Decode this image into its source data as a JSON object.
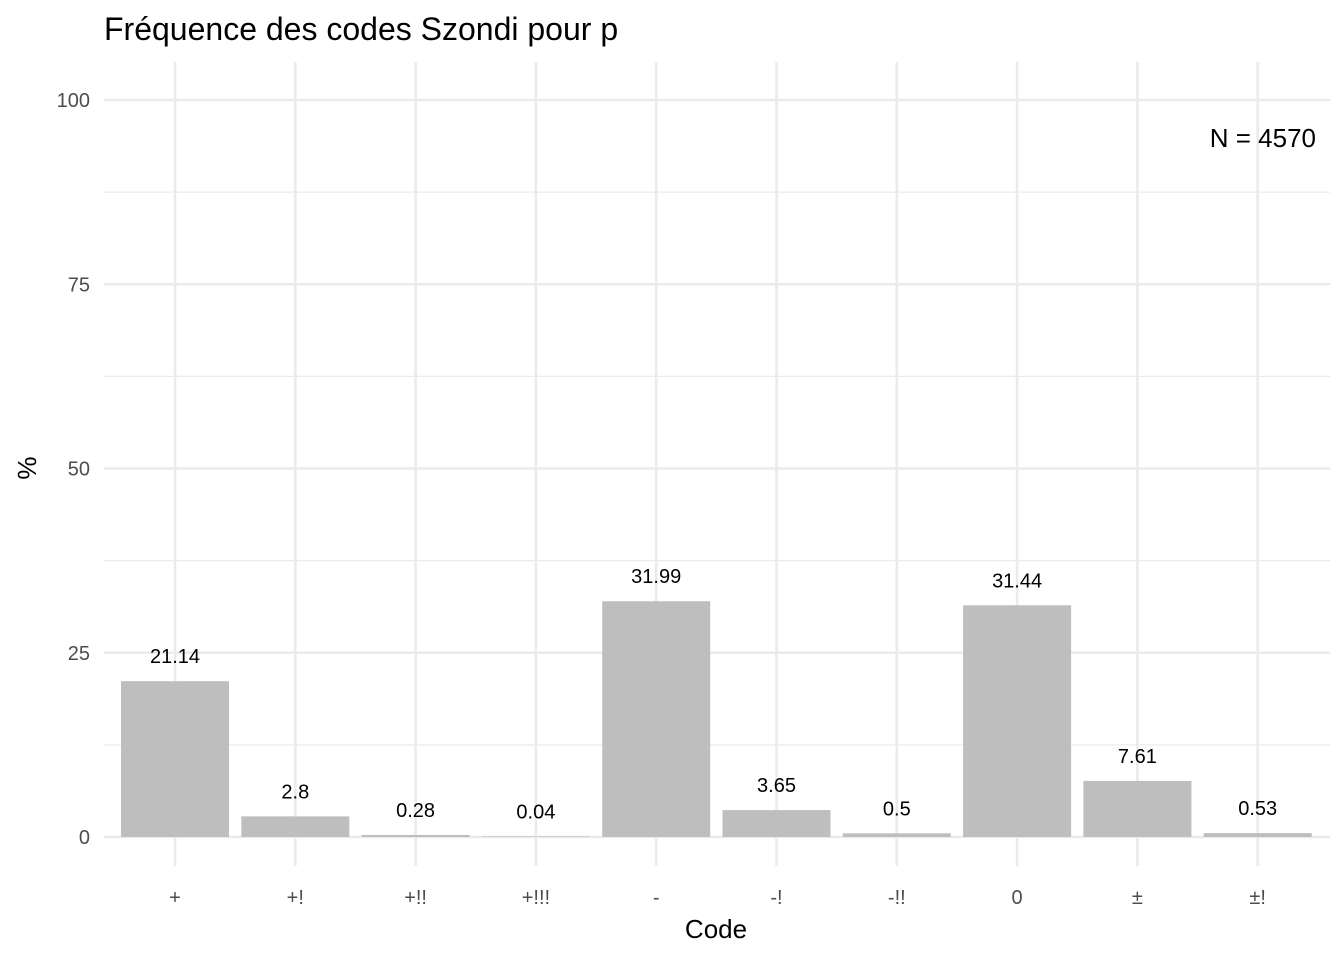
{
  "chart_data": {
    "type": "bar",
    "title": "Fréquence des codes Szondi pour p",
    "xlabel": "Code",
    "ylabel": "%",
    "categories": [
      "+",
      "+!",
      "+!!",
      "+!!!",
      "-",
      "-!",
      "-!!",
      "0",
      "±",
      "±!"
    ],
    "values": [
      21.14,
      2.8,
      0.28,
      0.04,
      31.99,
      3.65,
      0.5,
      31.44,
      7.61,
      0.53
    ],
    "data_labels": [
      "21.14",
      "2.8",
      "0.28",
      "0.04",
      "31.99",
      "3.65",
      "0.5",
      "31.44",
      "7.61",
      "0.53"
    ],
    "ylim": [
      0,
      100
    ],
    "yticks": [
      0,
      25,
      50,
      75,
      100
    ],
    "y_minor_ticks": [
      12.5,
      37.5,
      62.5,
      87.5
    ],
    "annotation": "N = 4570",
    "annotation_position": "top-right",
    "grid": true,
    "bar_color": "#bebebe",
    "grid_color": "#ebebeb"
  }
}
